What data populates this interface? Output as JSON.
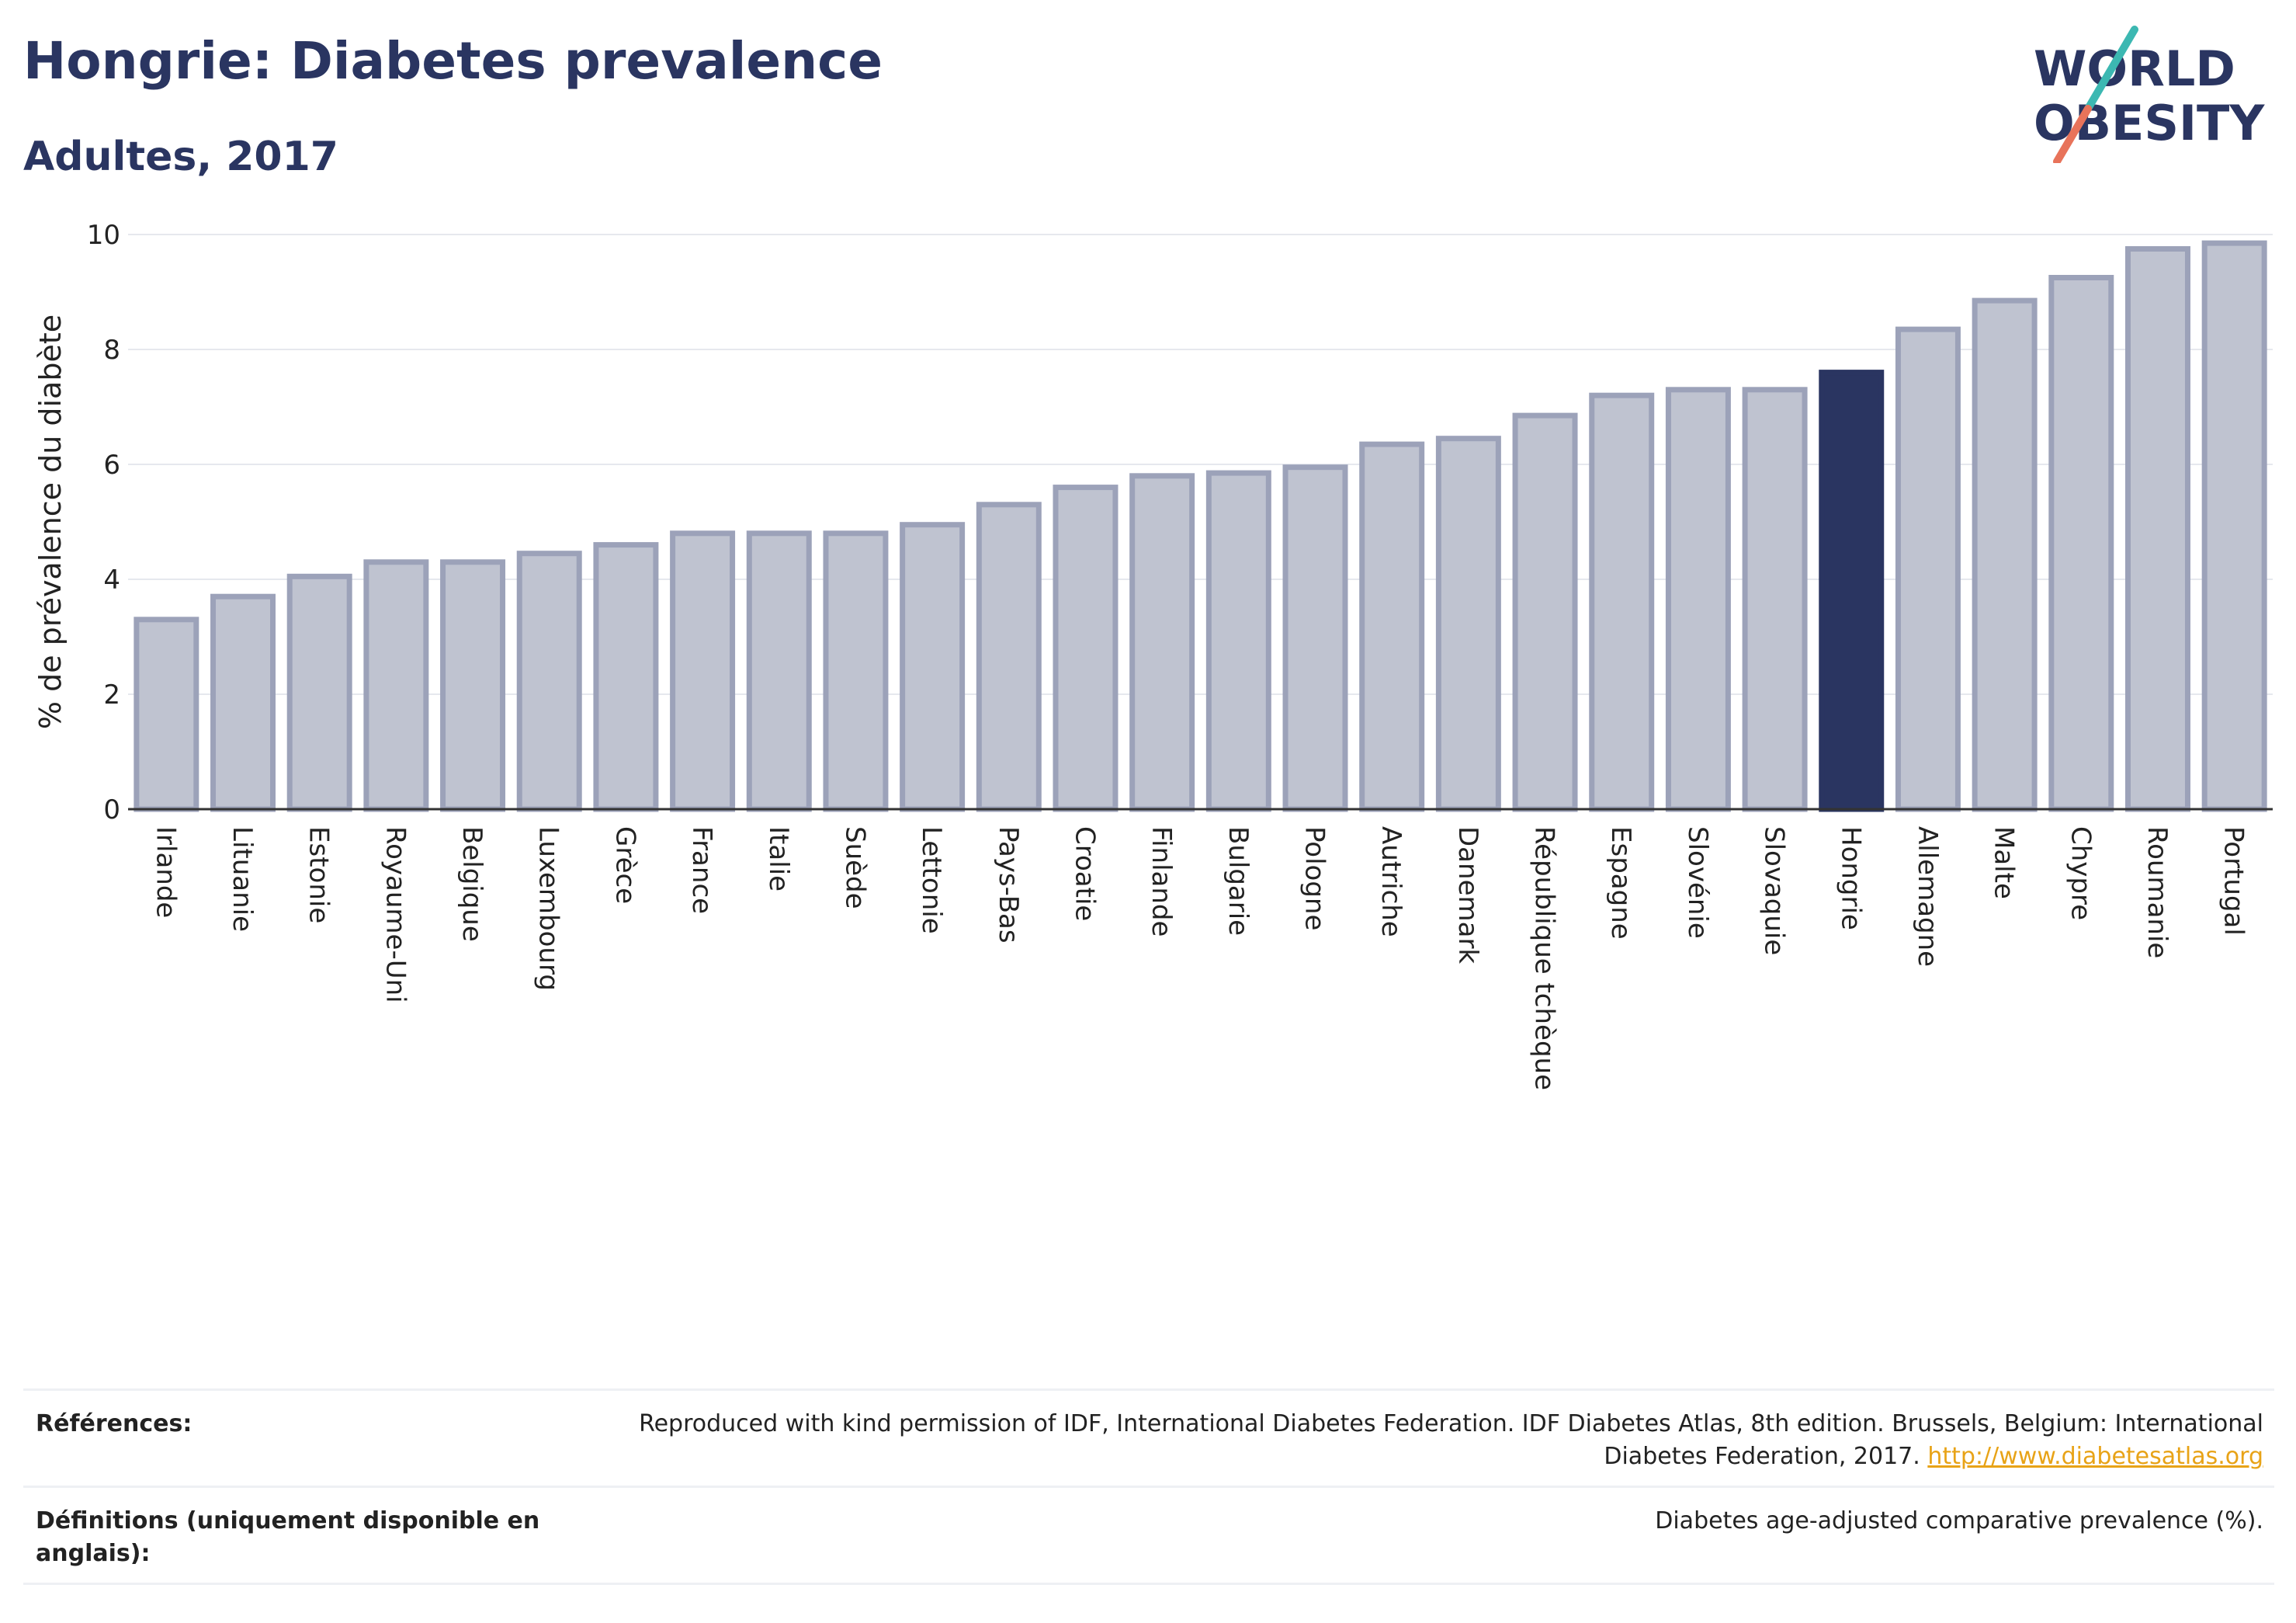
{
  "header": {
    "title": "Hongrie: Diabetes prevalence",
    "subtitle": "Adultes, 2017"
  },
  "logo": {
    "line1": "WORLD",
    "line2": "OBESITY"
  },
  "colors": {
    "bar": "#bfc3d0",
    "bar_border": "#9ca2b9",
    "highlight": "#2a3561",
    "grid": "#e6e8ee",
    "title": "#2a3561"
  },
  "chart_data": {
    "type": "bar",
    "title": "Hongrie: Diabetes prevalence",
    "subtitle": "Adultes, 2017",
    "ylabel": "% de prévalence du diabète",
    "xlabel": "",
    "ylim": [
      0,
      10
    ],
    "yticks": [
      0,
      2,
      4,
      6,
      8,
      10
    ],
    "grid": true,
    "highlight": "Hongrie",
    "categories": [
      "Irlande",
      "Lituanie",
      "Estonie",
      "Royaume-Uni",
      "Belgique",
      "Luxembourg",
      "Grèce",
      "France",
      "Italie",
      "Suède",
      "Lettonie",
      "Pays-Bas",
      "Croatie",
      "Finlande",
      "Bulgarie",
      "Pologne",
      "Autriche",
      "Danemark",
      "République tchèque",
      "Espagne",
      "Slovénie",
      "Slovaquie",
      "Hongrie",
      "Allemagne",
      "Malte",
      "Chypre",
      "Roumanie",
      "Portugal"
    ],
    "values": [
      3.3,
      3.7,
      4.05,
      4.3,
      4.3,
      4.45,
      4.6,
      4.8,
      4.8,
      4.8,
      4.95,
      5.3,
      5.6,
      5.8,
      5.85,
      5.95,
      6.35,
      6.45,
      6.85,
      7.2,
      7.3,
      7.3,
      7.6,
      8.35,
      8.85,
      9.25,
      9.75,
      9.85
    ]
  },
  "references": {
    "refs_label": "Références:",
    "refs_text": "Reproduced with kind permission of IDF, International Diabetes Federation. IDF Diabetes Atlas, 8th edition. Brussels, Belgium: International Diabetes Federation, 2017.",
    "refs_link": "http://www.diabetesatlas.org",
    "defs_label": "Définitions (uniquement disponible en anglais):",
    "defs_text": "Diabetes age-adjusted comparative prevalence (%)."
  }
}
